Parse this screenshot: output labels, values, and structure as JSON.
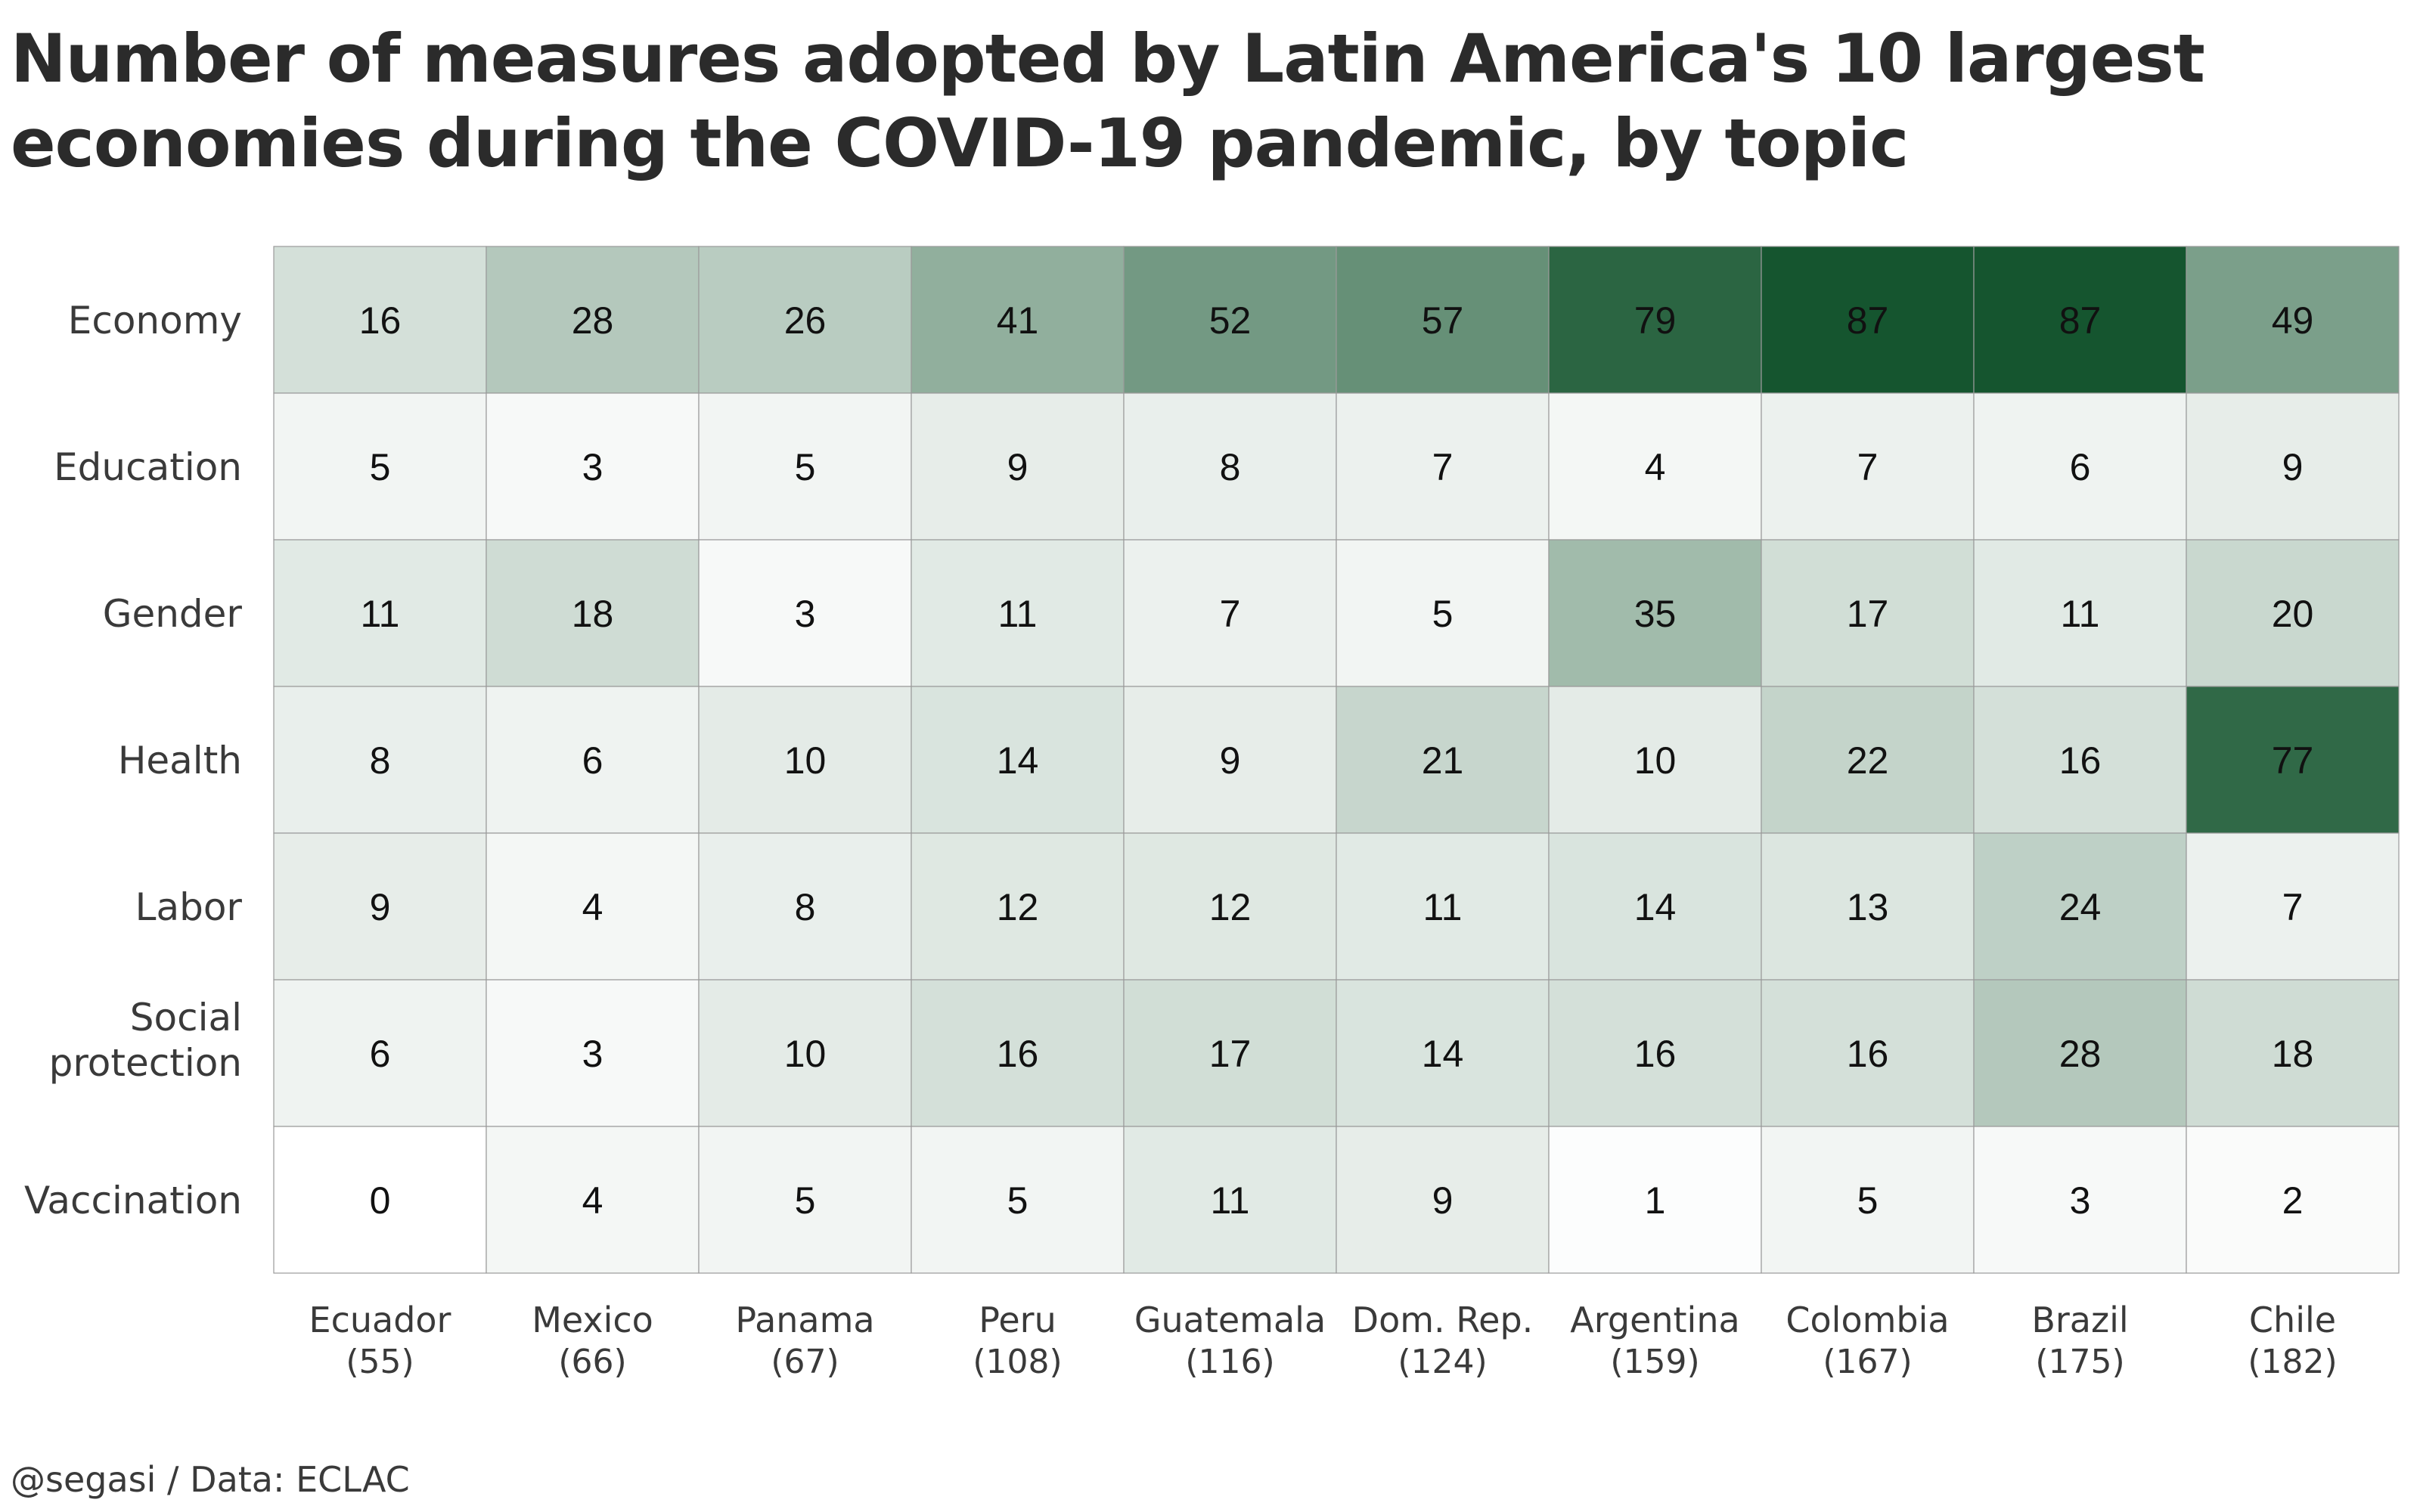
{
  "title_lines": [
    "Number of measures adopted by Latin America's 10 largest",
    "economies during the COVID-19 pandemic, by topic"
  ],
  "caption": "@segasi / Data: ECLAC",
  "chart_data": {
    "type": "heatmap",
    "title": "Number of measures adopted by Latin America's 10 largest economies during the COVID-19 pandemic, by topic",
    "xlabel": "",
    "ylabel": "",
    "x": [
      "Ecuador",
      "Mexico",
      "Panama",
      "Peru",
      "Guatemala",
      "Dom. Rep.",
      "Argentina",
      "Colombia",
      "Brazil",
      "Chile"
    ],
    "x_totals": [
      "(55)",
      "(66)",
      "(67)",
      "(108)",
      "(116)",
      "(124)",
      "(159)",
      "(167)",
      "(175)",
      "(182)"
    ],
    "y": [
      "Economy",
      "Education",
      "Gender",
      "Health",
      "Labor",
      "Social protection",
      "Vaccination"
    ],
    "values": [
      [
        16,
        28,
        26,
        41,
        52,
        57,
        79,
        87,
        87,
        49
      ],
      [
        5,
        3,
        5,
        9,
        8,
        7,
        4,
        7,
        6,
        9
      ],
      [
        11,
        18,
        3,
        11,
        7,
        5,
        35,
        17,
        11,
        20
      ],
      [
        8,
        6,
        10,
        14,
        9,
        21,
        10,
        22,
        16,
        77
      ],
      [
        9,
        4,
        8,
        12,
        12,
        11,
        14,
        13,
        24,
        7
      ],
      [
        6,
        3,
        10,
        16,
        17,
        14,
        16,
        16,
        28,
        18
      ],
      [
        0,
        4,
        5,
        5,
        11,
        9,
        1,
        5,
        3,
        2
      ]
    ],
    "color_low": "#ffffff",
    "color_high": "#15552f",
    "value_range": [
      0,
      87
    ],
    "grid": false
  }
}
